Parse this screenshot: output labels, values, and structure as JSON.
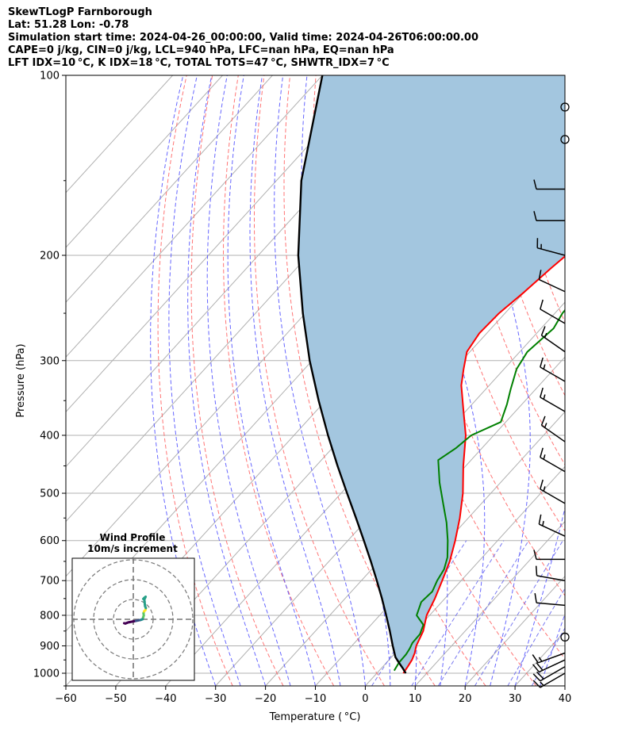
{
  "header": {
    "line1": "SkewTLogP Farnborough",
    "line2": "Lat: 51.28   Lon: -0.78",
    "line3": "Simulation start time: 2024-04-26_00:00:00, Valid time: 2024-04-26T06:00:00.00",
    "line4": "CAPE=0 j/kg, CIN=0 j/kg, LCL=940 hPa, LFC=nan hPa, EQ=nan hPa",
    "line5": "LFT IDX=10 °C, K IDX=18 °C, TOTAL TOTS=47 °C, SHWTR_IDX=7 °C"
  },
  "colors": {
    "temperature": "#ff0000",
    "dewpoint": "#008000",
    "parcel": "#000000",
    "shade": "#a3c6df",
    "isotherm": "#b0b0b0",
    "dry_adiabat": "#ff6666",
    "moist_adiabat": "#5555ff",
    "mixing_ratio": "#6a6aee",
    "grid": "#b0b0b0"
  },
  "chart_data": [
    {
      "type": "line",
      "xlabel": "Temperature ( °C)",
      "ylabel": "Pressure (hPa)",
      "xlim": [
        -60,
        40
      ],
      "ylim": [
        1050,
        100
      ],
      "yscale": "log",
      "x_ticks": [
        "−60",
        "−50",
        "−40",
        "−30",
        "−20",
        "−10",
        "0",
        "10",
        "20",
        "30",
        "40"
      ],
      "y_ticks": [
        {
          "p": 1000,
          "label": "1000"
        },
        {
          "p": 900,
          "label": "900"
        },
        {
          "p": 800,
          "label": "800"
        },
        {
          "p": 700,
          "label": "700"
        },
        {
          "p": 600,
          "label": "600"
        },
        {
          "p": 500,
          "label": "500"
        },
        {
          "p": 400,
          "label": "400"
        },
        {
          "p": 300,
          "label": "300"
        },
        {
          "p": 200,
          "label": "200"
        },
        {
          "p": 100,
          "label": "100"
        }
      ],
      "series": [
        {
          "key": "temperature",
          "points": [
            [
              1000,
              5.3
            ],
            [
              975,
              5.0
            ],
            [
              950,
              4.6
            ],
            [
              925,
              3.9
            ],
            [
              900,
              2.9
            ],
            [
              850,
              1.6
            ],
            [
              800,
              -0.6
            ],
            [
              750,
              -2.0
            ],
            [
              700,
              -3.8
            ],
            [
              650,
              -5.8
            ],
            [
              600,
              -8.5
            ],
            [
              550,
              -11.7
            ],
            [
              500,
              -15.6
            ],
            [
              450,
              -20.5
            ],
            [
              400,
              -25.6
            ],
            [
              360,
              -31.1
            ],
            [
              330,
              -35.6
            ],
            [
              310,
              -38.1
            ],
            [
              290,
              -40.6
            ],
            [
              270,
              -41.5
            ],
            [
              250,
              -41.2
            ],
            [
              230,
              -40.0
            ],
            [
              210,
              -39.0
            ],
            [
              200,
              -38.3
            ],
            [
              190,
              -37.8
            ],
            [
              175,
              -37.3
            ],
            [
              160,
              -37.5
            ],
            [
              150,
              -36.4
            ],
            [
              140,
              -35.3
            ],
            [
              125,
              -34.0
            ],
            [
              110,
              -33.3
            ],
            [
              100,
              -33.4
            ]
          ]
        },
        {
          "key": "dewpoint",
          "points": [
            [
              990,
              3.0
            ],
            [
              960,
              2.5
            ],
            [
              930,
              2.4
            ],
            [
              910,
              2.1
            ],
            [
              890,
              1.6
            ],
            [
              860,
              1.5
            ],
            [
              830,
              0.5
            ],
            [
              800,
              -2.6
            ],
            [
              760,
              -4.1
            ],
            [
              730,
              -3.8
            ],
            [
              700,
              -4.8
            ],
            [
              670,
              -5.5
            ],
            [
              640,
              -7.0
            ],
            [
              600,
              -10.0
            ],
            [
              560,
              -13.5
            ],
            [
              520,
              -17.7
            ],
            [
              480,
              -22.2
            ],
            [
              440,
              -26.6
            ],
            [
              420,
              -25.2
            ],
            [
              400,
              -24.5
            ],
            [
              380,
              -21.0
            ],
            [
              355,
              -23.0
            ],
            [
              335,
              -25.0
            ],
            [
              310,
              -27.5
            ],
            [
              290,
              -28.5
            ],
            [
              265,
              -27.5
            ],
            [
              250,
              -28.5
            ],
            [
              225,
              -29.0
            ],
            [
              210,
              -31.0
            ],
            [
              195,
              -35.0
            ],
            [
              185,
              -40.5
            ],
            [
              175,
              -42.5
            ],
            [
              162,
              -46.5
            ],
            [
              148,
              -49.0
            ],
            [
              133,
              -51.0
            ],
            [
              115,
              -53.0
            ],
            [
              100,
              -55.5
            ]
          ]
        },
        {
          "key": "parcel",
          "points": [
            [
              1000,
              5.8
            ],
            [
              980,
              4.2
            ],
            [
              960,
              2.5
            ],
            [
              940,
              0.8
            ],
            [
              900,
              -1.8
            ],
            [
              850,
              -5.1
            ],
            [
              800,
              -8.7
            ],
            [
              750,
              -12.6
            ],
            [
              700,
              -16.9
            ],
            [
              650,
              -21.6
            ],
            [
              600,
              -26.8
            ],
            [
              550,
              -32.5
            ],
            [
              500,
              -38.8
            ],
            [
              450,
              -45.7
            ],
            [
              400,
              -53.2
            ],
            [
              350,
              -61.4
            ],
            [
              300,
              -70.5
            ],
            [
              250,
              -80.5
            ],
            [
              200,
              -92.0
            ],
            [
              150,
              -105.0
            ],
            [
              100,
              -120.0
            ]
          ]
        }
      ],
      "wind_barbs": [
        {
          "p": 1000,
          "speed_kt": 15,
          "dir": 240
        },
        {
          "p": 975,
          "speed_kt": 20,
          "dir": 240
        },
        {
          "p": 950,
          "speed_kt": 20,
          "dir": 245
        },
        {
          "p": 925,
          "speed_kt": 15,
          "dir": 250
        },
        {
          "p": 870,
          "speed_kt": 0,
          "dir": 0
        },
        {
          "p": 770,
          "speed_kt": 10,
          "dir": 275
        },
        {
          "p": 700,
          "speed_kt": 10,
          "dir": 280
        },
        {
          "p": 645,
          "speed_kt": 10,
          "dir": 270
        },
        {
          "p": 590,
          "speed_kt": 15,
          "dir": 295
        },
        {
          "p": 520,
          "speed_kt": 15,
          "dir": 300
        },
        {
          "p": 460,
          "speed_kt": 15,
          "dir": 300
        },
        {
          "p": 410,
          "speed_kt": 15,
          "dir": 305
        },
        {
          "p": 365,
          "speed_kt": 15,
          "dir": 300
        },
        {
          "p": 325,
          "speed_kt": 15,
          "dir": 300
        },
        {
          "p": 290,
          "speed_kt": 15,
          "dir": 305
        },
        {
          "p": 260,
          "speed_kt": 10,
          "dir": 300
        },
        {
          "p": 230,
          "speed_kt": 10,
          "dir": 295
        },
        {
          "p": 200,
          "speed_kt": 15,
          "dir": 285
        },
        {
          "p": 175,
          "speed_kt": 10,
          "dir": 270
        },
        {
          "p": 155,
          "speed_kt": 10,
          "dir": 270
        },
        {
          "p": 128,
          "speed_kt": 0,
          "dir": 0
        },
        {
          "p": 113,
          "speed_kt": 0,
          "dir": 0
        }
      ]
    },
    {
      "type": "scatter",
      "title": "Wind Profile",
      "subtitle": "10m/s increment",
      "points": [
        [
          -3.5,
          -1.5
        ],
        [
          -3.0,
          -1.6
        ],
        [
          -2.5,
          -1.4
        ],
        [
          -2.0,
          -1.2
        ],
        [
          -1.5,
          -1.1
        ],
        [
          -1.0,
          -1.0
        ],
        [
          -0.5,
          -0.9
        ],
        [
          0,
          -0.8
        ],
        [
          0.5,
          -0.7
        ],
        [
          1.0,
          -0.6
        ],
        [
          1.5,
          -0.5
        ],
        [
          2.0,
          -0.4
        ],
        [
          2.5,
          -0.3
        ],
        [
          3.0,
          -0.2
        ],
        [
          3.5,
          0.0
        ],
        [
          3.8,
          0.8
        ],
        [
          4.0,
          1.5
        ],
        [
          3.9,
          2.3
        ],
        [
          4.1,
          3.0
        ],
        [
          4.6,
          3.5
        ],
        [
          4.8,
          4.3
        ],
        [
          4.5,
          5.0
        ],
        [
          4.4,
          5.8
        ],
        [
          4.3,
          6.8
        ],
        [
          4.2,
          7.5
        ],
        [
          4.5,
          8.2
        ],
        [
          4.7,
          8.6
        ],
        [
          4.2,
          8.2
        ],
        [
          3.8,
          7.8
        ]
      ]
    }
  ]
}
